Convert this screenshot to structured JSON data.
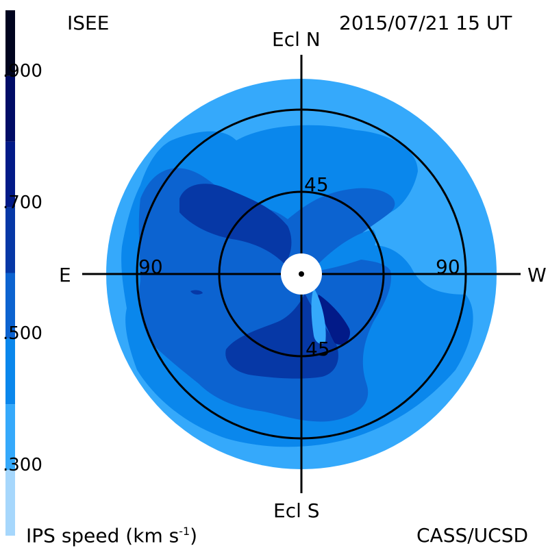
{
  "header": {
    "source": "ISEE",
    "datetime": "2015/07/21 15 UT",
    "credit": "CASS/UCSD"
  },
  "chart_data": {
    "type": "heatmap",
    "projection": "polar sky map",
    "title": "",
    "axes": {
      "north": "Ecl N",
      "south": "Ecl S",
      "east": "E",
      "west": "W"
    },
    "ring_labels": {
      "inner_top": "45",
      "inner_bottom": "45",
      "outer_left": "90",
      "outer_right": "90"
    },
    "rings_deg": [
      45,
      90
    ],
    "colorbar": {
      "label_text": "IPS speed (km s",
      "label_sup": "-1",
      "label_close": ")",
      "range": [
        200,
        1000
      ],
      "ticks": [
        {
          "value": 900,
          "label": ".900"
        },
        {
          "value": 700,
          "label": ".700"
        },
        {
          "value": 500,
          "label": ".500"
        },
        {
          "value": 300,
          "label": ".300"
        }
      ],
      "bins": [
        {
          "from": 200,
          "to": 300,
          "color": "#a6d7fc"
        },
        {
          "from": 300,
          "to": 400,
          "color": "#35a9fb"
        },
        {
          "from": 400,
          "to": 500,
          "color": "#0a87ec"
        },
        {
          "from": 500,
          "to": 600,
          "color": "#0c63d0"
        },
        {
          "from": 600,
          "to": 700,
          "color": "#0638a6"
        },
        {
          "from": 700,
          "to": 800,
          "color": "#021a88"
        },
        {
          "from": 800,
          "to": 900,
          "color": "#000c66"
        },
        {
          "from": 900,
          "to": 1000,
          "color": "#00041f"
        }
      ]
    }
  }
}
